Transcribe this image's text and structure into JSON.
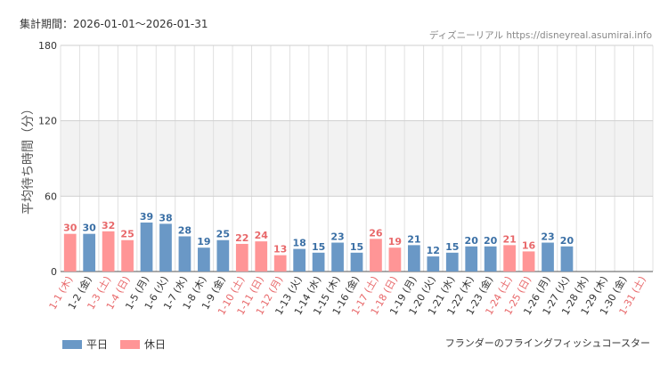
{
  "header": {
    "period_label": "集計期間：2026-01-01〜2026-01-31",
    "source_label": "ディズニーリアル https://disneyreal.asumirai.info"
  },
  "footer": {
    "attraction_name": "フランダーのフライングフィッシュコースター"
  },
  "colors": {
    "weekday": "#6a98c6",
    "holiday": "#ff9596",
    "weekday_text": "#3a6fa5",
    "holiday_text": "#e8686a",
    "band": "#f2f2f2",
    "grid": "#e0e0e0"
  },
  "chart_data": {
    "type": "bar",
    "ylabel": "平均待ち時間（分）",
    "ylim": [
      0,
      180
    ],
    "yticks": [
      0,
      60,
      120,
      180
    ],
    "band_range": [
      60,
      120
    ],
    "grid": true,
    "legend_position": "bottom-left",
    "categories": [
      "1-1 (木)",
      "1-2 (金)",
      "1-3 (土)",
      "1-4 (日)",
      "1-5 (月)",
      "1-6 (火)",
      "1-7 (水)",
      "1-8 (木)",
      "1-9 (金)",
      "1-10 (土)",
      "1-11 (日)",
      "1-12 (月)",
      "1-13 (火)",
      "1-14 (水)",
      "1-15 (木)",
      "1-16 (金)",
      "1-17 (土)",
      "1-18 (日)",
      "1-19 (月)",
      "1-20 (火)",
      "1-21 (水)",
      "1-22 (木)",
      "1-23 (金)",
      "1-24 (土)",
      "1-25 (日)",
      "1-26 (月)",
      "1-27 (火)",
      "1-28 (水)",
      "1-29 (木)",
      "1-30 (金)",
      "1-31 (土)"
    ],
    "day_types": [
      "holiday",
      "weekday",
      "holiday",
      "holiday",
      "weekday",
      "weekday",
      "weekday",
      "weekday",
      "weekday",
      "holiday",
      "holiday",
      "holiday",
      "weekday",
      "weekday",
      "weekday",
      "weekday",
      "holiday",
      "holiday",
      "weekday",
      "weekday",
      "weekday",
      "weekday",
      "weekday",
      "holiday",
      "holiday",
      "weekday",
      "weekday",
      "weekday",
      "weekday",
      "weekday",
      "holiday"
    ],
    "series": [
      {
        "name": "平日",
        "type": "weekday"
      },
      {
        "name": "休日",
        "type": "holiday"
      }
    ],
    "values": [
      30,
      30,
      32,
      25,
      39,
      38,
      28,
      19,
      25,
      22,
      24,
      13,
      18,
      15,
      23,
      15,
      26,
      19,
      21,
      12,
      15,
      20,
      20,
      21,
      16,
      23,
      20,
      null,
      null,
      null,
      null
    ]
  }
}
